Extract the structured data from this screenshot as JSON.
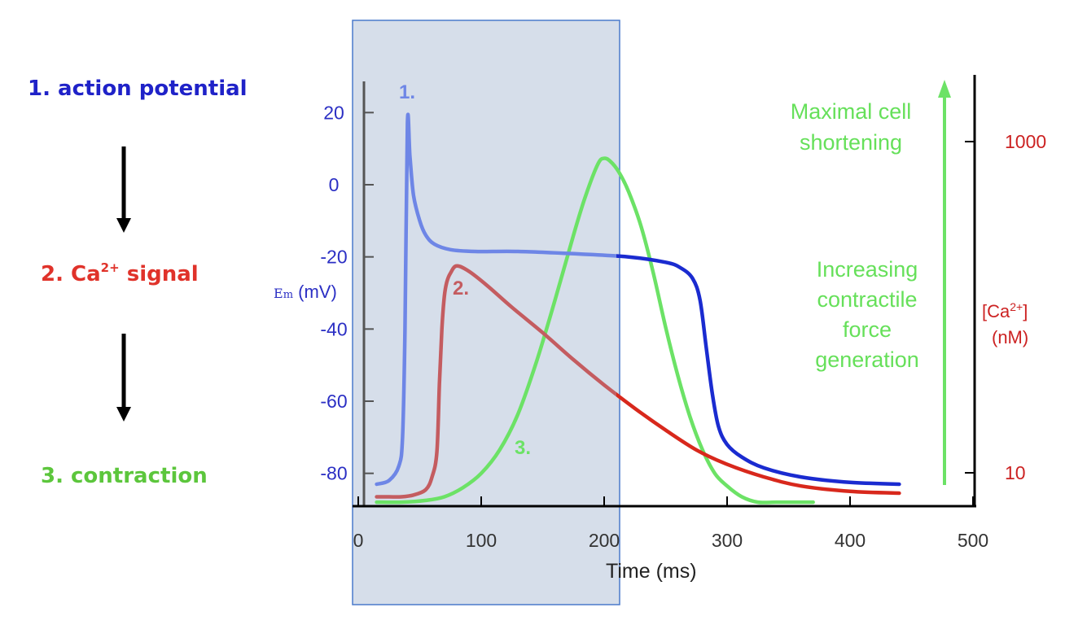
{
  "steps": {
    "s1": "1. action potential",
    "s2_prefix": "2. Ca",
    "s2_sup": "2+",
    "s2_suffix": " signal",
    "s3": "3. contraction"
  },
  "colors": {
    "ap": "#1a2bd0",
    "ap_light": "#6e86e6",
    "ca": "#d8281c",
    "ca_light": "#c45c60",
    "contraction": "#6ce266",
    "highlight_fill": "#cfd8e6",
    "highlight_border": "#4a7acb"
  },
  "chart_data": {
    "type": "line",
    "title": "",
    "xlabel": "Time (ms)",
    "xlim": [
      0,
      500
    ],
    "x_ticks": [
      "0",
      "100",
      "200",
      "300",
      "400",
      "500"
    ],
    "ylabel_left_prefix": "E",
    "ylabel_left_sub": "m",
    "ylabel_left_suffix": " (mV)",
    "ylim_left": [
      -90,
      30
    ],
    "y_ticks_left": [
      "20",
      "0",
      "-20",
      "-40",
      "-60",
      "-80"
    ],
    "ylabel_right_line1": "[Ca",
    "ylabel_right_sup": "2+",
    "ylabel_right_line1_end": "]",
    "ylabel_right_line2": "(nM)",
    "y_ticks_right": [
      "1000",
      "10"
    ],
    "highlight_x_range": [
      0,
      210
    ],
    "series": [
      {
        "name": "action potential",
        "label": "1.",
        "x": [
          15,
          25,
          33,
          36,
          38,
          40,
          42,
          45,
          50,
          55,
          62,
          75,
          95,
          130,
          180,
          220,
          250,
          262,
          272,
          278,
          283,
          288,
          293,
          300,
          312,
          330,
          360,
          400,
          440
        ],
        "y": [
          -83,
          -82,
          -78,
          -70,
          -40,
          17,
          8,
          -3,
          -10,
          -14,
          -16.5,
          -18,
          -18.5,
          -18.5,
          -19.2,
          -20,
          -21.5,
          -23,
          -26,
          -32,
          -45,
          -58,
          -67,
          -72,
          -75.5,
          -78.5,
          -81,
          -82.5,
          -83
        ]
      },
      {
        "name": "Ca2+ signal",
        "label": "2.",
        "x": [
          15,
          25,
          35,
          45,
          55,
          60,
          64,
          66,
          68,
          70,
          72,
          75,
          80,
          90,
          105,
          125,
          150,
          175,
          200,
          225,
          250,
          275,
          300,
          330,
          360,
          400,
          440
        ],
        "y": [
          -86.5,
          -86.5,
          -86.5,
          -86,
          -84.5,
          -81,
          -74,
          -55,
          -40,
          -31,
          -27,
          -24.5,
          -22.5,
          -24,
          -28,
          -34,
          -41,
          -48.5,
          -55.5,
          -62,
          -68,
          -73.5,
          -77.5,
          -81,
          -83.5,
          -85,
          -85.5
        ]
      },
      {
        "name": "contraction",
        "label": "3.",
        "x": [
          15,
          35,
          55,
          70,
          85,
          100,
          115,
          130,
          145,
          160,
          175,
          185,
          195,
          200,
          205,
          212,
          220,
          230,
          240,
          250,
          260,
          270,
          280,
          290,
          300,
          312,
          325,
          340,
          355,
          370
        ],
        "y": [
          -88,
          -88,
          -87.5,
          -86.5,
          -84,
          -80,
          -73.5,
          -63.5,
          -49,
          -32,
          -14,
          -3,
          5.8,
          7.3,
          6.5,
          3.5,
          -2,
          -11.5,
          -24.5,
          -39.5,
          -53,
          -64.5,
          -73.5,
          -80,
          -83.5,
          -86.5,
          -88,
          -88,
          -88,
          -88
        ]
      }
    ],
    "annotations": [
      {
        "text": "Maximal cell",
        "line": 1
      },
      {
        "text": "shortening",
        "line": 2
      },
      {
        "text": "Increasing",
        "line": 3
      },
      {
        "text": "contractile",
        "line": 4
      },
      {
        "text": "force",
        "line": 5
      },
      {
        "text": "generation",
        "line": 6
      }
    ]
  }
}
